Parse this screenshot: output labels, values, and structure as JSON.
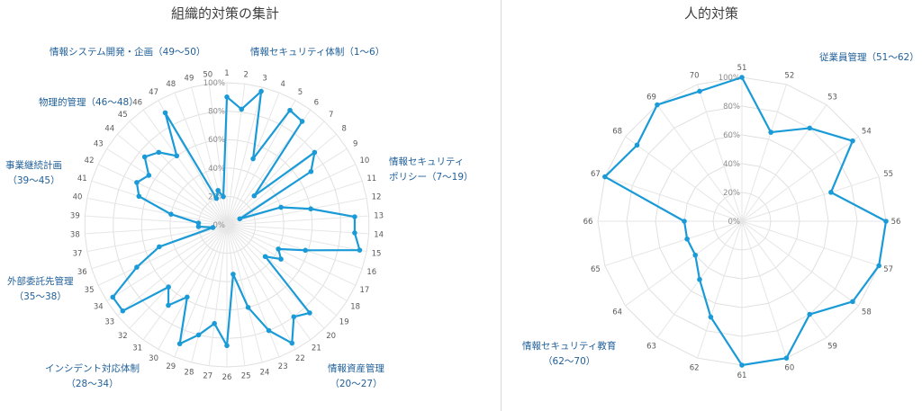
{
  "charts": [
    {
      "title": "組織的対策の集計",
      "groups": [
        {
          "label": "情報システム開発・企画（49〜50）",
          "lines": [
            "情報システム開発・企画（49〜50）"
          ]
        },
        {
          "label": "情報セキュリティ体制（1〜6）",
          "lines": [
            "情報セキュリティ体制（1〜6）"
          ]
        },
        {
          "label": "物理的管理（46〜48）",
          "lines": [
            "物理的管理（46〜48）"
          ]
        },
        {
          "label": "情報セキュリティポリシー（7〜19）",
          "lines": [
            "情報セキュリティ",
            "ポリシー（7〜19）"
          ]
        },
        {
          "label": "事業継続計画（39〜45）",
          "lines": [
            "事業継続計画",
            "（39〜45）"
          ]
        },
        {
          "label": "外部委託先管理（35〜38）",
          "lines": [
            "外部委託先管理",
            "（35〜38）"
          ]
        },
        {
          "label": "インシデント対応体制（28〜34）",
          "lines": [
            "インシデント対応体制",
            "（28〜34）"
          ]
        },
        {
          "label": "情報資産管理（20〜27）",
          "lines": [
            "情報資産管理",
            "（20〜27）"
          ]
        }
      ]
    },
    {
      "title": "人的対策",
      "groups": [
        {
          "label": "従業員管理（51〜62）",
          "lines": [
            "従業員管理（51〜62）"
          ]
        },
        {
          "label": "情報セキュリティ教育（62〜70）",
          "lines": [
            "情報セキュリティ教育",
            "（62〜70）"
          ]
        }
      ]
    }
  ],
  "chart_data": [
    {
      "type": "radar",
      "title": "組織的対策の集計",
      "categories": [
        "1",
        "2",
        "3",
        "4",
        "5",
        "6",
        "7",
        "8",
        "9",
        "10",
        "11",
        "12",
        "13",
        "14",
        "15",
        "16",
        "17",
        "18",
        "19",
        "20",
        "21",
        "22",
        "23",
        "24",
        "25",
        "26",
        "27",
        "28",
        "29",
        "30",
        "31",
        "32",
        "33",
        "34",
        "35",
        "36",
        "37",
        "38",
        "39",
        "40",
        "41",
        "42",
        "43",
        "44",
        "45",
        "46",
        "47",
        "48",
        "49",
        "50"
      ],
      "values": [
        90,
        82,
        97,
        50,
        92,
        90,
        28,
        80,
        70,
        10,
        40,
        60,
        90,
        90,
        95,
        58,
        40,
        45,
        35,
        85,
        80,
        95,
        80,
        60,
        35,
        85,
        70,
        80,
        90,
        58,
        70,
        60,
        95,
        95,
        70,
        50,
        10,
        20,
        20,
        40,
        65,
        70,
        65,
        75,
        70,
        60,
        90,
        20,
        25,
        20
      ],
      "rlim": [
        0,
        100
      ],
      "ticks": [
        "0%",
        "20%",
        "40%",
        "60%",
        "80%",
        "100%"
      ],
      "color": "#1a9bd7"
    },
    {
      "type": "radar",
      "title": "人的対策",
      "categories": [
        "51",
        "52",
        "53",
        "54",
        "55",
        "56",
        "57",
        "58",
        "59",
        "60",
        "61",
        "62",
        "63",
        "64",
        "65",
        "66",
        "67",
        "68",
        "69",
        "70"
      ],
      "values": [
        100,
        65,
        80,
        95,
        65,
        100,
        100,
        95,
        80,
        100,
        100,
        70,
        50,
        40,
        40,
        40,
        100,
        90,
        100,
        95
      ],
      "rlim": [
        0,
        100
      ],
      "ticks": [
        "0%",
        "20%",
        "40%",
        "60%",
        "80%",
        "100%"
      ],
      "color": "#1a9bd7"
    }
  ]
}
